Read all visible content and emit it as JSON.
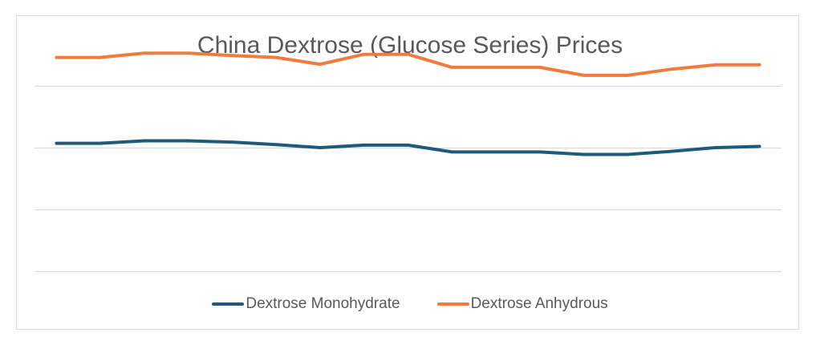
{
  "chart_data": {
    "type": "line",
    "title": "China Dextrose (Glucose Series) Prices",
    "xlabel": "",
    "ylabel": "",
    "ylim": [
      0,
      4
    ],
    "grid": true,
    "legend_position": "bottom",
    "x": [
      1,
      2,
      3,
      4,
      5,
      6,
      7,
      8,
      9,
      10,
      11,
      12,
      13,
      14,
      15,
      16,
      17
    ],
    "series": [
      {
        "name": "Dextrose Monohydrate",
        "color": "#1f5a7a",
        "values": [
          2.07,
          2.07,
          2.11,
          2.11,
          2.09,
          2.05,
          2.0,
          2.04,
          2.04,
          1.93,
          1.93,
          1.93,
          1.89,
          1.89,
          1.94,
          2.0,
          2.02
        ]
      },
      {
        "name": "Dextrose Anhydrous",
        "color": "#ef7b3d",
        "values": [
          3.46,
          3.46,
          3.53,
          3.53,
          3.49,
          3.46,
          3.35,
          3.51,
          3.51,
          3.3,
          3.3,
          3.3,
          3.17,
          3.17,
          3.27,
          3.34,
          3.34
        ]
      }
    ]
  }
}
